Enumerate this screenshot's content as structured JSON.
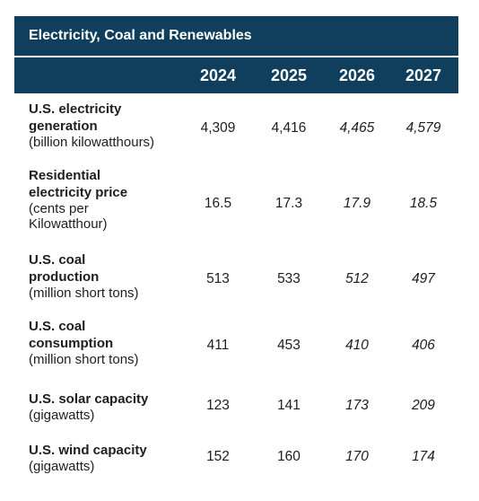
{
  "chart_data": {
    "type": "table",
    "title": "Electricity, Coal and Renewables",
    "columns": [
      "2024",
      "2025",
      "2026",
      "2027"
    ],
    "projected_columns": [
      "2026",
      "2027"
    ],
    "rows": [
      {
        "name": "U.S. electricity generation",
        "unit": "(billion kilowatthours)",
        "values": [
          "4,309",
          "4,416",
          "4,465",
          "4,579"
        ]
      },
      {
        "name": "Residential electricity price",
        "unit": "(cents per Kilowatthour)",
        "values": [
          "16.5",
          "17.3",
          "17.9",
          "18.5"
        ]
      },
      {
        "name": "U.S. coal production",
        "unit": "(million short tons)",
        "values": [
          "513",
          "533",
          "512",
          "497"
        ]
      },
      {
        "name": "U.S. coal consumption",
        "unit": "(million short tons)",
        "values": [
          "411",
          "453",
          "410",
          "406"
        ]
      },
      {
        "name": "U.S. solar capacity",
        "unit": "(gigawatts)",
        "values": [
          "123",
          "141",
          "173",
          "209"
        ]
      },
      {
        "name": "U.S. wind capacity",
        "unit": "(gigawatts)",
        "values": [
          "152",
          "160",
          "170",
          "174"
        ]
      }
    ],
    "colors": {
      "header_bg": "#0f3f5c",
      "header_text": "#ffffff",
      "body_text": "#1e1e1e"
    }
  }
}
